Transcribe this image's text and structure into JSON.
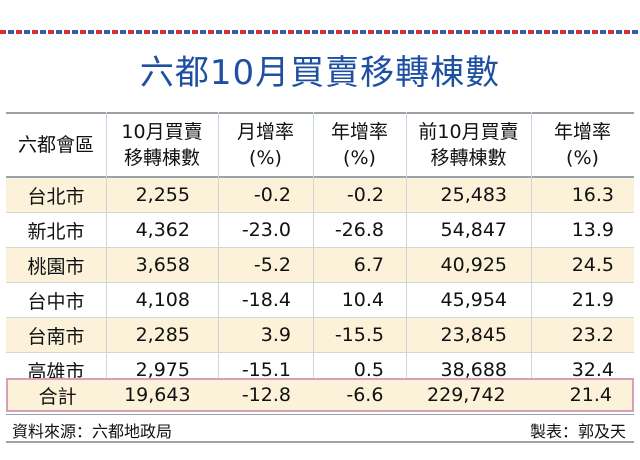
{
  "title": "六都10月買賣移轉棟數",
  "header": {
    "region": "六都會區",
    "c1_line1": "10月買賣",
    "c1_line2": "移轉棟數",
    "c2_line1": "月增率",
    "c2_line2": "(%)",
    "c3_line1": "年增率",
    "c3_line2": "(%)",
    "c4_line1": "前10月買賣",
    "c4_line2": "移轉棟數",
    "c5_line1": "年增率",
    "c5_line2": "(%)"
  },
  "rows": [
    {
      "region": "台北市",
      "oct": "2,255",
      "mom": "-0.2",
      "yoy": "-0.2",
      "ytd": "25,483",
      "ytd_yoy": "16.3"
    },
    {
      "region": "新北市",
      "oct": "4,362",
      "mom": "-23.0",
      "yoy": "-26.8",
      "ytd": "54,847",
      "ytd_yoy": "13.9"
    },
    {
      "region": "桃園市",
      "oct": "3,658",
      "mom": "-5.2",
      "yoy": "6.7",
      "ytd": "40,925",
      "ytd_yoy": "24.5"
    },
    {
      "region": "台中市",
      "oct": "4,108",
      "mom": "-18.4",
      "yoy": "10.4",
      "ytd": "45,954",
      "ytd_yoy": "21.9"
    },
    {
      "region": "台南市",
      "oct": "2,285",
      "mom": "3.9",
      "yoy": "-15.5",
      "ytd": "23,845",
      "ytd_yoy": "23.2"
    },
    {
      "region": "高雄市",
      "oct": "2,975",
      "mom": "-15.1",
      "yoy": "0.5",
      "ytd": "38,688",
      "ytd_yoy": "32.4"
    }
  ],
  "total": {
    "region": "合計",
    "oct": "19,643",
    "mom": "-12.8",
    "yoy": "-6.6",
    "ytd": "229,742",
    "ytd_yoy": "21.4"
  },
  "footer": {
    "source": "資料來源：六都地政局",
    "author": "製表：郭及天"
  },
  "colors": {
    "title": "#1d4fa3",
    "row_highlight": "#fbf2d9",
    "total_border": "#d6a1b8"
  }
}
